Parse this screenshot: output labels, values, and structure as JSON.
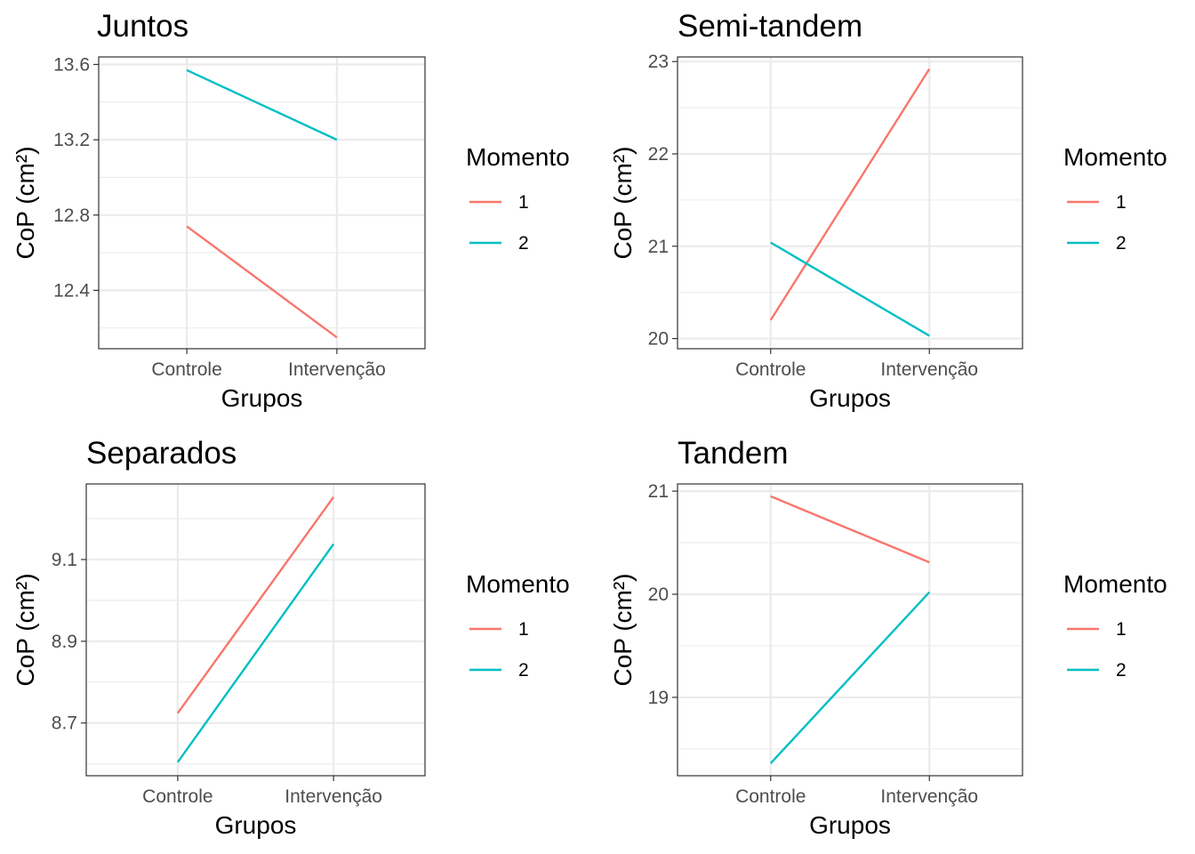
{
  "colors": {
    "series_1": "#F8766D",
    "series_2": "#00BFC4"
  },
  "chart_data": [
    {
      "type": "line",
      "title": "Juntos",
      "xlabel": "Grupos",
      "ylabel": "CoP (cm²)",
      "categories": [
        "Controle",
        "Intervenção"
      ],
      "yticks": [
        "12.4",
        "12.8",
        "13.2",
        "13.6"
      ],
      "ylim": [
        12.09,
        13.64
      ],
      "legend": {
        "title": "Momento",
        "position": "right"
      },
      "grid": true,
      "series": [
        {
          "name": "1",
          "values": [
            12.74,
            12.15
          ]
        },
        {
          "name": "2",
          "values": [
            13.57,
            13.2
          ]
        }
      ]
    },
    {
      "type": "line",
      "title": "Semi-tandem",
      "xlabel": "Grupos",
      "ylabel": "CoP (cm²)",
      "categories": [
        "Controle",
        "Intervenção"
      ],
      "yticks": [
        "20",
        "21",
        "22",
        "23"
      ],
      "ylim": [
        19.89,
        23.05
      ],
      "legend": {
        "title": "Momento",
        "position": "right"
      },
      "grid": true,
      "series": [
        {
          "name": "1",
          "values": [
            20.2,
            22.92
          ]
        },
        {
          "name": "2",
          "values": [
            21.04,
            20.03
          ]
        }
      ]
    },
    {
      "type": "line",
      "title": "Separados",
      "xlabel": "Grupos",
      "ylabel": "CoP (cm²)",
      "categories": [
        "Controle",
        "Intervenção"
      ],
      "yticks": [
        "8.7",
        "8.9",
        "9.1"
      ],
      "ylim": [
        8.571,
        9.285
      ],
      "legend": {
        "title": "Momento",
        "position": "right"
      },
      "grid": true,
      "series": [
        {
          "name": "1",
          "values": [
            8.724,
            9.253
          ]
        },
        {
          "name": "2",
          "values": [
            8.604,
            9.138
          ]
        }
      ]
    },
    {
      "type": "line",
      "title": "Tandem",
      "xlabel": "Grupos",
      "ylabel": "CoP (cm²)",
      "categories": [
        "Controle",
        "Intervenção"
      ],
      "yticks": [
        "19",
        "20",
        "21"
      ],
      "ylim": [
        18.24,
        21.07
      ],
      "legend": {
        "title": "Momento",
        "position": "right"
      },
      "grid": true,
      "series": [
        {
          "name": "1",
          "values": [
            20.95,
            20.31
          ]
        },
        {
          "name": "2",
          "values": [
            18.36,
            20.02
          ]
        }
      ]
    }
  ]
}
